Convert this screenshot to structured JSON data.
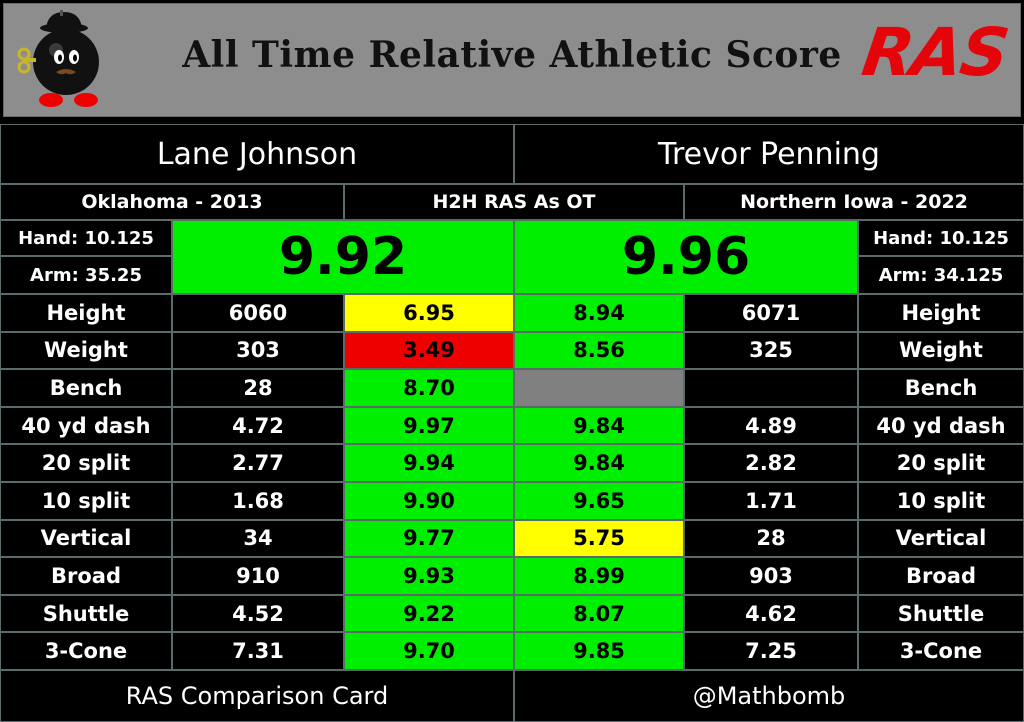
{
  "header": {
    "title": "All Time Relative Athletic Score",
    "logo_text": "RAS",
    "mascot_icon": "bomb-mascot-icon"
  },
  "players": {
    "left": {
      "name": "Lane Johnson",
      "school_year": "Oklahoma - 2013",
      "hand": "Hand: 10.125",
      "arm": "Arm: 35.25",
      "score": "9.92"
    },
    "right": {
      "name": "Trevor Penning",
      "school_year": "Northern Iowa - 2022",
      "hand": "Hand: 10.125",
      "arm": "Arm: 34.125",
      "score": "9.96"
    }
  },
  "center_label": "H2H RAS As OT",
  "rows": [
    {
      "label": "Height",
      "left_value": "6060",
      "left_score": "6.95",
      "left_color": "yellow",
      "right_score": "8.94",
      "right_color": "green",
      "right_value": "6071"
    },
    {
      "label": "Weight",
      "left_value": "303",
      "left_score": "3.49",
      "left_color": "red",
      "right_score": "8.56",
      "right_color": "green",
      "right_value": "325"
    },
    {
      "label": "Bench",
      "left_value": "28",
      "left_score": "8.70",
      "left_color": "green",
      "right_score": "",
      "right_color": "gray",
      "right_value": ""
    },
    {
      "label": "40 yd dash",
      "left_value": "4.72",
      "left_score": "9.97",
      "left_color": "green",
      "right_score": "9.84",
      "right_color": "green",
      "right_value": "4.89"
    },
    {
      "label": "20 split",
      "left_value": "2.77",
      "left_score": "9.94",
      "left_color": "green",
      "right_score": "9.84",
      "right_color": "green",
      "right_value": "2.82"
    },
    {
      "label": "10 split",
      "left_value": "1.68",
      "left_score": "9.90",
      "left_color": "green",
      "right_score": "9.65",
      "right_color": "green",
      "right_value": "1.71"
    },
    {
      "label": "Vertical",
      "left_value": "34",
      "left_score": "9.77",
      "left_color": "green",
      "right_score": "5.75",
      "right_color": "yellow",
      "right_value": "28"
    },
    {
      "label": "Broad",
      "left_value": "910",
      "left_score": "9.93",
      "left_color": "green",
      "right_score": "8.99",
      "right_color": "green",
      "right_value": "903"
    },
    {
      "label": "Shuttle",
      "left_value": "4.52",
      "left_score": "9.22",
      "left_color": "green",
      "right_score": "8.07",
      "right_color": "green",
      "right_value": "4.62"
    },
    {
      "label": "3-Cone",
      "left_value": "7.31",
      "left_score": "9.70",
      "left_color": "green",
      "right_score": "9.85",
      "right_color": "green",
      "right_value": "7.25"
    }
  ],
  "footer": {
    "left": "RAS Comparison Card",
    "right": "@Mathbomb"
  },
  "colors": {
    "green": "#00ee00",
    "yellow": "#ffff00",
    "red": "#ee0000",
    "gray": "#808080",
    "logo": "#e3050a"
  }
}
